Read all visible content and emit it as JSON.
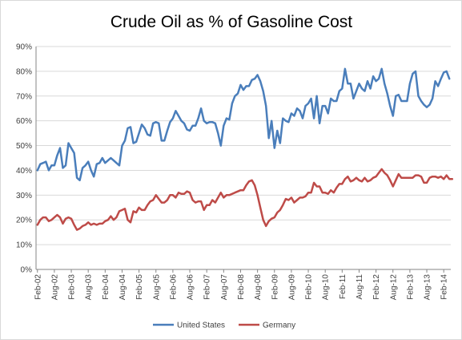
{
  "chart_data": {
    "type": "line",
    "title": "Crude Oil as % of Gasoline Cost",
    "xlabel": "",
    "ylabel": "",
    "ylim": [
      0,
      90
    ],
    "ytick_labels": [
      "0%",
      "10%",
      "20%",
      "30%",
      "40%",
      "50%",
      "60%",
      "70%",
      "80%",
      "90%"
    ],
    "x_tick_labels": [
      "Feb-02",
      "Aug-02",
      "Feb-03",
      "Aug-03",
      "Feb-04",
      "Aug-04",
      "Feb-05",
      "Aug-05",
      "Feb-06",
      "Aug-06",
      "Feb-07",
      "Aug-07",
      "Feb-08",
      "Aug-08",
      "Feb-09",
      "Aug-09",
      "Feb-10",
      "Aug-10",
      "Feb-11",
      "Aug-11",
      "Feb-12",
      "Aug-12",
      "Feb-13",
      "Aug-13",
      "Feb-14"
    ],
    "x_start": "Feb-02",
    "x_end": "Feb-14",
    "grid": true,
    "legend": "bottom",
    "series": [
      {
        "name": "United States",
        "color": "#4a7ebb",
        "values": [
          40,
          42.5,
          43,
          43.5,
          40,
          42,
          42,
          46,
          49,
          41,
          42,
          51,
          49,
          47,
          37,
          36,
          41,
          42,
          43.5,
          40,
          37.5,
          42.5,
          43,
          45,
          43,
          44,
          45,
          44,
          43,
          42,
          50,
          52,
          57,
          57.5,
          51,
          51.5,
          55,
          58.5,
          57,
          54.5,
          54,
          59,
          59.5,
          59,
          52,
          52,
          56,
          59.5,
          61,
          64,
          62,
          60,
          59,
          56.5,
          56,
          58,
          58,
          61,
          65,
          60,
          59,
          59.5,
          59.5,
          59,
          55,
          50,
          58,
          61,
          60.5,
          67,
          70,
          71,
          74.5,
          72.5,
          74,
          74,
          76.5,
          77,
          78.5,
          76,
          72,
          66,
          53,
          60,
          49,
          56,
          51,
          61,
          60,
          59.5,
          63,
          62,
          65,
          64,
          61,
          66,
          67,
          69,
          61,
          70,
          59,
          66,
          66,
          63,
          69,
          68,
          68,
          72,
          73,
          81,
          75,
          75,
          69,
          72,
          75,
          73,
          72,
          76,
          73,
          78,
          76,
          77,
          81,
          75,
          71,
          66,
          62,
          70,
          70.5,
          68,
          68,
          68,
          75,
          79,
          80,
          70,
          68,
          66.5,
          65.5,
          66.5,
          69,
          76,
          74,
          77,
          79.5,
          80,
          77
        ]
      },
      {
        "name": "Germany",
        "color": "#be4b48",
        "values": [
          18,
          20,
          21,
          21,
          19.5,
          20,
          21,
          22,
          21,
          18.5,
          20.5,
          21,
          20.5,
          18,
          16,
          16.5,
          17.5,
          18,
          19,
          18,
          18.5,
          18,
          18.5,
          18.5,
          19.5,
          20,
          21.5,
          20,
          21,
          23.5,
          24,
          24.5,
          20,
          19,
          23.5,
          23,
          25,
          24,
          24,
          26,
          27.5,
          28,
          30,
          28.5,
          27,
          27,
          28,
          30,
          30,
          29,
          31,
          30.5,
          30.5,
          31.5,
          31,
          28,
          27,
          27.5,
          27.5,
          24,
          26,
          26,
          28,
          27,
          29,
          31,
          29,
          30,
          30,
          30.5,
          31,
          31.5,
          32,
          32,
          34,
          35.5,
          36,
          34,
          30,
          25,
          20,
          17.5,
          19.5,
          20.5,
          21,
          23,
          24,
          26,
          28.5,
          28,
          29,
          27,
          28,
          29,
          29,
          29.5,
          31,
          31,
          35,
          33.5,
          33.5,
          31,
          31,
          30.5,
          32,
          31,
          33,
          34.5,
          34.5,
          36.5,
          37.5,
          35.5,
          36,
          37,
          36,
          35.5,
          37,
          35.5,
          36,
          37,
          37.5,
          39,
          40.5,
          39,
          38,
          36,
          33.5,
          36,
          38.5,
          37,
          37,
          37,
          37,
          37,
          38,
          38,
          37.5,
          35,
          35,
          37,
          37.5,
          37.5,
          37,
          37.5,
          36.5,
          38,
          36.5,
          36.5
        ]
      }
    ]
  }
}
